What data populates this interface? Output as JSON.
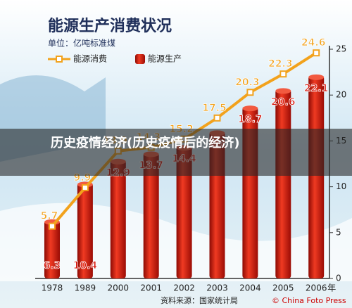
{
  "chart_data": {
    "type": "bar_line",
    "title": "能源生产消费状况",
    "unit_label": "单位：亿吨标准煤",
    "categories": [
      "1978",
      "1989",
      "2000",
      "2001",
      "2002",
      "2003",
      "2004",
      "2005",
      "2006"
    ],
    "x_unit": "年",
    "series": [
      {
        "name": "能源消费",
        "kind": "line",
        "color": "#f2a21c",
        "values": [
          5.7,
          9.9,
          13.9,
          14.3,
          15.2,
          17.5,
          20.3,
          22.3,
          24.6
        ]
      },
      {
        "name": "能源生产",
        "kind": "bar",
        "color": "#d4160c",
        "values": [
          6.3,
          10.4,
          12.9,
          13.7,
          14.4,
          16.0,
          18.7,
          20.6,
          22.1
        ]
      }
    ],
    "ylim": [
      0,
      25
    ],
    "yticks": [
      0,
      5,
      10,
      15,
      20,
      25
    ],
    "source": "资料来源：国家统计局",
    "credit": "© China Foto Press",
    "overlay_caption": "历史疫情经济(历史疫情后的经济)"
  }
}
